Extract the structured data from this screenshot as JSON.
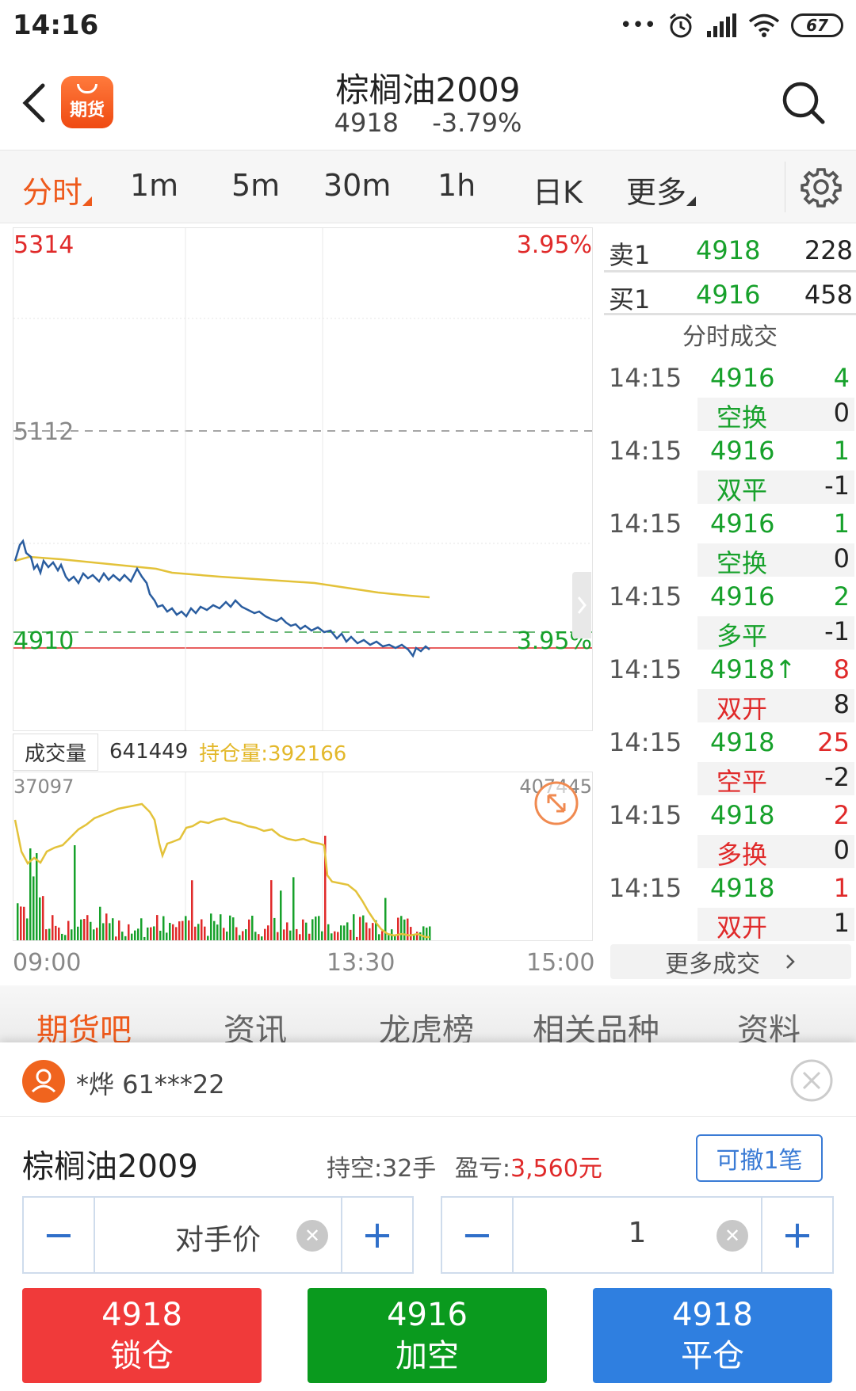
{
  "status_bar": {
    "time": "14:16",
    "dots": "•••",
    "battery": "67"
  },
  "header": {
    "title": "棕榈油2009",
    "price": "4918",
    "change_pct": "-3.79%",
    "logo_text": "期货"
  },
  "period_tabs": [
    {
      "label": "分时",
      "active": true
    },
    {
      "label": "1m"
    },
    {
      "label": "5m"
    },
    {
      "label": "30m"
    },
    {
      "label": "1h"
    },
    {
      "label": "日K"
    },
    {
      "label": "更多"
    }
  ],
  "price_chart": {
    "high_label": "5314",
    "mid_label": "5112",
    "low_label": "4910",
    "high_pct": "3.95%",
    "low_pct": "3.95%"
  },
  "volume_bar": {
    "label": "成交量",
    "volume": "641449",
    "open_interest": "持仓量:392166"
  },
  "volume_chart": {
    "left_max": "37097",
    "right_max": "407445"
  },
  "time_axis": {
    "start": "09:00",
    "mid": "13:30",
    "end": "15:00"
  },
  "order_book": {
    "ask": {
      "label": "卖1",
      "price": "4918",
      "qty": "228"
    },
    "bid": {
      "label": "买1",
      "price": "4916",
      "qty": "458"
    }
  },
  "ticks_title": "分时成交",
  "ticks": [
    {
      "time": "14:15",
      "price": "4916",
      "vol": "4",
      "vol_color": "green",
      "type": "空换",
      "type_color": "green",
      "chg": "0"
    },
    {
      "time": "14:15",
      "price": "4916",
      "vol": "1",
      "vol_color": "green",
      "type": "双平",
      "type_color": "green",
      "chg": "-1"
    },
    {
      "time": "14:15",
      "price": "4916",
      "vol": "1",
      "vol_color": "green",
      "type": "空换",
      "type_color": "green",
      "chg": "0"
    },
    {
      "time": "14:15",
      "price": "4916",
      "vol": "2",
      "vol_color": "green",
      "type": "多平",
      "type_color": "green",
      "chg": "-1"
    },
    {
      "time": "14:15",
      "price": "4918↑",
      "vol": "8",
      "vol_color": "red",
      "type": "双开",
      "type_color": "red",
      "chg": "8"
    },
    {
      "time": "14:15",
      "price": "4918",
      "vol": "25",
      "vol_color": "red",
      "type": "空平",
      "type_color": "red",
      "chg": "-2"
    },
    {
      "time": "14:15",
      "price": "4918",
      "vol": "2",
      "vol_color": "red",
      "type": "多换",
      "type_color": "red",
      "chg": "0"
    },
    {
      "time": "14:15",
      "price": "4918",
      "vol": "1",
      "vol_color": "red",
      "type": "双开",
      "type_color": "red",
      "chg": "1"
    }
  ],
  "more_ticks": "更多成交",
  "bottom_tabs": [
    {
      "label": "期货吧",
      "active": true
    },
    {
      "label": "资讯"
    },
    {
      "label": "龙虎榜"
    },
    {
      "label": "相关品种"
    },
    {
      "label": "资料"
    }
  ],
  "trade": {
    "account": "*烨 61***22",
    "contract": "棕榈油2009",
    "position_label": "持空:32手",
    "pnl_label": "盈亏:",
    "pnl_value": "3,560元",
    "cancel_label": "可撤1笔",
    "price_value": "对手价",
    "qty_value": "1",
    "minus": "−",
    "plus": "+",
    "buttons": [
      {
        "price": "4918",
        "label": "锁仓",
        "color": "#f03a3a"
      },
      {
        "price": "4916",
        "label": "加空",
        "color": "#0a9a1e"
      },
      {
        "price": "4918",
        "label": "平仓",
        "color": "#2f7fe0"
      }
    ]
  },
  "colors": {
    "accent": "#ee5a1c",
    "up": "#e02a2a",
    "down": "#17a12b",
    "price_line": "#2a5d9f",
    "avg_line": "#e3c23a"
  }
}
